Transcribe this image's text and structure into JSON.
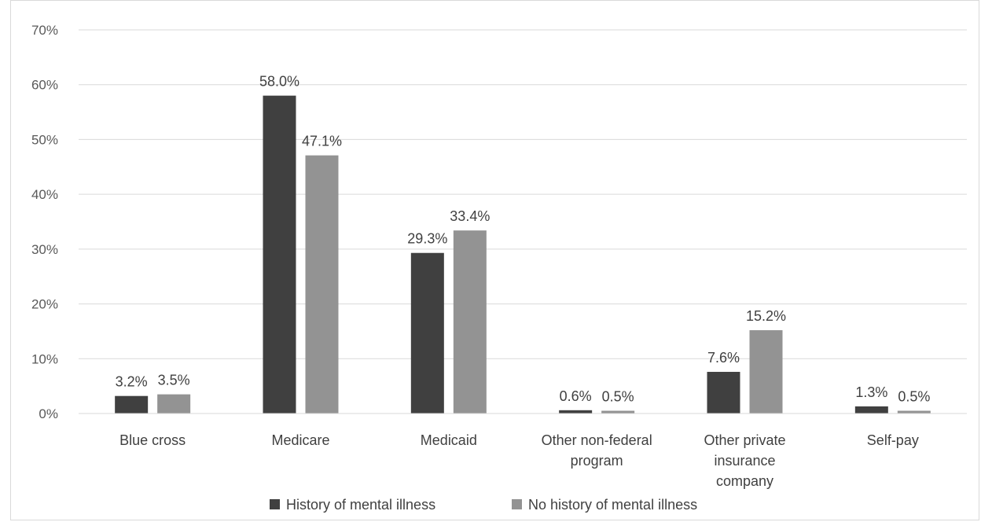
{
  "chart_data": {
    "type": "bar",
    "categories": [
      [
        "Blue cross"
      ],
      [
        "Medicare"
      ],
      [
        "Medicaid"
      ],
      [
        "Other non-federal",
        "program"
      ],
      [
        "Other private",
        "insurance",
        "company"
      ],
      [
        "Self-pay"
      ]
    ],
    "series": [
      {
        "name": "History of mental illness",
        "values": [
          3.2,
          58.0,
          29.3,
          0.6,
          7.6,
          1.3
        ],
        "labels": [
          "3.2%",
          "58.0%",
          "29.3%",
          "0.6%",
          "7.6%",
          "1.3%"
        ],
        "color": "#404040"
      },
      {
        "name": "No history of mental illness",
        "values": [
          3.5,
          47.1,
          33.4,
          0.5,
          15.2,
          0.5
        ],
        "labels": [
          "3.5%",
          "47.1%",
          "33.4%",
          "0.5%",
          "15.2%",
          "0.5%"
        ],
        "color": "#939393"
      }
    ],
    "yticks": [
      "0%",
      "10%",
      "20%",
      "30%",
      "40%",
      "50%",
      "60%",
      "70%"
    ],
    "ylim": [
      0,
      70
    ],
    "grid": true,
    "gridColor": "#d9d9d9",
    "legendPlacement": "bottom"
  }
}
